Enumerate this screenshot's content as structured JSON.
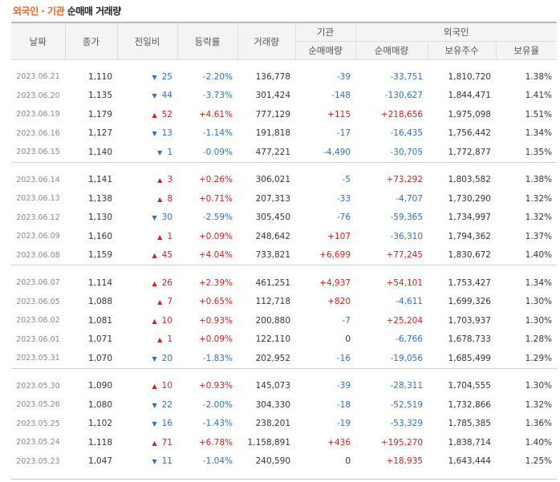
{
  "title": {
    "part1": "외국인 · 기관",
    "part2": "순매매 거래량"
  },
  "headers": {
    "date": "날짜",
    "close": "종가",
    "change": "전일비",
    "rate": "등락률",
    "volume": "거래량",
    "inst": "기관",
    "foreign": "외국인",
    "inst_net": "순매매량",
    "foreign_net": "순매매량",
    "foreign_shares": "보유주수",
    "foreign_ratio": "보유율"
  },
  "groups": [
    [
      {
        "date": "2023.06.21",
        "close": "1,110",
        "dir": "down",
        "change": "25",
        "rate": "-2.20%",
        "volume": "136,778",
        "inst": "-39",
        "foreign": "-33,751",
        "shares": "1,810,720",
        "ratio": "1.38%"
      },
      {
        "date": "2023.06.20",
        "close": "1,135",
        "dir": "down",
        "change": "44",
        "rate": "-3.73%",
        "volume": "301,424",
        "inst": "-148",
        "foreign": "-130,627",
        "shares": "1,844,471",
        "ratio": "1.41%"
      },
      {
        "date": "2023.06.19",
        "close": "1,179",
        "dir": "up",
        "change": "52",
        "rate": "+4.61%",
        "volume": "777,129",
        "inst": "+115",
        "foreign": "+218,656",
        "shares": "1,975,098",
        "ratio": "1.51%"
      },
      {
        "date": "2023.06.16",
        "close": "1,127",
        "dir": "down",
        "change": "13",
        "rate": "-1.14%",
        "volume": "191,818",
        "inst": "-17",
        "foreign": "-16,435",
        "shares": "1,756,442",
        "ratio": "1.34%"
      },
      {
        "date": "2023.06.15",
        "close": "1,140",
        "dir": "down",
        "change": "1",
        "rate": "-0.09%",
        "volume": "477,221",
        "inst": "-4,490",
        "foreign": "-30,705",
        "shares": "1,772,877",
        "ratio": "1.35%"
      }
    ],
    [
      {
        "date": "2023.06.14",
        "close": "1,141",
        "dir": "up",
        "change": "3",
        "rate": "+0.26%",
        "volume": "306,021",
        "inst": "-5",
        "foreign": "+73,292",
        "shares": "1,803,582",
        "ratio": "1.38%"
      },
      {
        "date": "2023.06.13",
        "close": "1,138",
        "dir": "up",
        "change": "8",
        "rate": "+0.71%",
        "volume": "207,313",
        "inst": "-33",
        "foreign": "-4,707",
        "shares": "1,730,290",
        "ratio": "1.32%"
      },
      {
        "date": "2023.06.12",
        "close": "1,130",
        "dir": "down",
        "change": "30",
        "rate": "-2.59%",
        "volume": "305,450",
        "inst": "-76",
        "foreign": "-59,365",
        "shares": "1,734,997",
        "ratio": "1.32%"
      },
      {
        "date": "2023.06.09",
        "close": "1,160",
        "dir": "up",
        "change": "1",
        "rate": "+0.09%",
        "volume": "248,642",
        "inst": "+107",
        "foreign": "-36,310",
        "shares": "1,794,362",
        "ratio": "1.37%"
      },
      {
        "date": "2023.06.08",
        "close": "1,159",
        "dir": "up",
        "change": "45",
        "rate": "+4.04%",
        "volume": "733,821",
        "inst": "+6,699",
        "foreign": "+77,245",
        "shares": "1,830,672",
        "ratio": "1.40%"
      }
    ],
    [
      {
        "date": "2023.06.07",
        "close": "1,114",
        "dir": "up",
        "change": "26",
        "rate": "+2.39%",
        "volume": "461,251",
        "inst": "+4,937",
        "foreign": "+54,101",
        "shares": "1,753,427",
        "ratio": "1.34%"
      },
      {
        "date": "2023.06.05",
        "close": "1,088",
        "dir": "up",
        "change": "7",
        "rate": "+0.65%",
        "volume": "112,718",
        "inst": "+820",
        "foreign": "-4,611",
        "shares": "1,699,326",
        "ratio": "1.30%"
      },
      {
        "date": "2023.06.02",
        "close": "1,081",
        "dir": "up",
        "change": "10",
        "rate": "+0.93%",
        "volume": "200,880",
        "inst": "-7",
        "foreign": "+25,204",
        "shares": "1,703,937",
        "ratio": "1.30%"
      },
      {
        "date": "2023.06.01",
        "close": "1,071",
        "dir": "up",
        "change": "1",
        "rate": "+0.09%",
        "volume": "122,110",
        "inst": "0",
        "foreign": "-6,766",
        "shares": "1,678,733",
        "ratio": "1.28%"
      },
      {
        "date": "2023.05.31",
        "close": "1,070",
        "dir": "down",
        "change": "20",
        "rate": "-1.83%",
        "volume": "202,952",
        "inst": "-16",
        "foreign": "-19,056",
        "shares": "1,685,499",
        "ratio": "1.29%"
      }
    ],
    [
      {
        "date": "2023.05.30",
        "close": "1,090",
        "dir": "up",
        "change": "10",
        "rate": "+0.93%",
        "volume": "145,073",
        "inst": "-39",
        "foreign": "-28,311",
        "shares": "1,704,555",
        "ratio": "1.30%"
      },
      {
        "date": "2023.05.26",
        "close": "1,080",
        "dir": "down",
        "change": "22",
        "rate": "-2.00%",
        "volume": "304,330",
        "inst": "-18",
        "foreign": "-52,519",
        "shares": "1,732,866",
        "ratio": "1.32%"
      },
      {
        "date": "2023.05.25",
        "close": "1,102",
        "dir": "down",
        "change": "16",
        "rate": "-1.43%",
        "volume": "238,201",
        "inst": "-19",
        "foreign": "-53,329",
        "shares": "1,785,385",
        "ratio": "1.36%"
      },
      {
        "date": "2023.05.24",
        "close": "1,118",
        "dir": "up",
        "change": "71",
        "rate": "+6.78%",
        "volume": "1,158,891",
        "inst": "+436",
        "foreign": "+195,270",
        "shares": "1,838,714",
        "ratio": "1.40%"
      },
      {
        "date": "2023.05.23",
        "close": "1,047",
        "dir": "down",
        "change": "11",
        "rate": "-1.04%",
        "volume": "240,590",
        "inst": "0",
        "foreign": "+18,935",
        "shares": "1,643,444",
        "ratio": "1.25%"
      }
    ]
  ],
  "colors": {
    "up": "#d61e1e",
    "down": "#2f6ec7",
    "accent": "#e8662b"
  }
}
